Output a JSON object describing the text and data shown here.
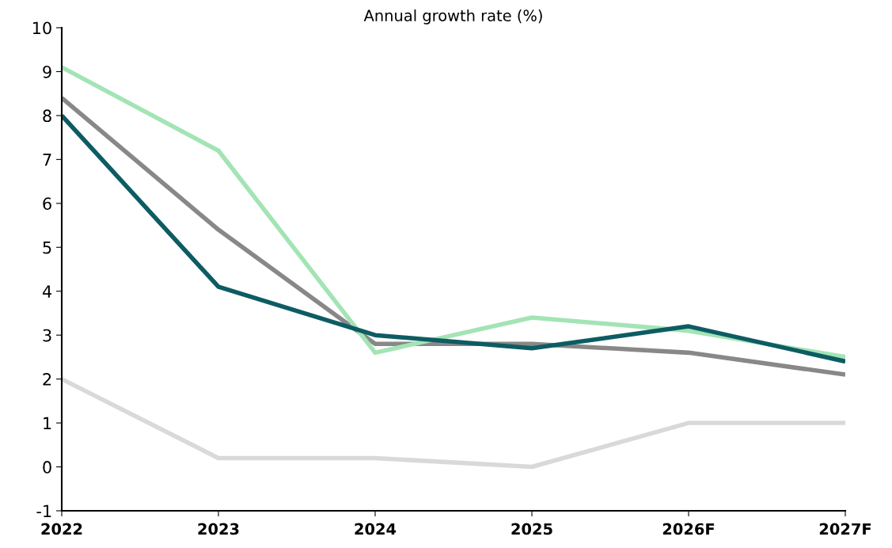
{
  "chart_data": {
    "type": "line",
    "title": "Annual growth rate (%)",
    "categories": [
      "2022",
      "2023",
      "2024",
      "2025",
      "2026F",
      "2027F"
    ],
    "series": [
      {
        "color": "#d9d9d9",
        "values": [
          2.0,
          0.2,
          0.2,
          0.0,
          1.0,
          1.0
        ]
      },
      {
        "color": "#888888",
        "values": [
          8.4,
          5.4,
          2.8,
          2.8,
          2.6,
          2.1
        ]
      },
      {
        "color": "#a3e4b5",
        "values": [
          9.1,
          7.2,
          2.6,
          3.4,
          3.1,
          2.5
        ]
      },
      {
        "color": "#0d5c63",
        "values": [
          8.0,
          4.1,
          3.0,
          2.7,
          3.2,
          2.4
        ]
      }
    ],
    "ylim": [
      -1,
      10
    ],
    "yticks": [
      -1,
      0,
      1,
      2,
      3,
      4,
      5,
      6,
      7,
      8,
      9,
      10
    ],
    "grid": false,
    "marker": "none",
    "line_style": "solid"
  }
}
